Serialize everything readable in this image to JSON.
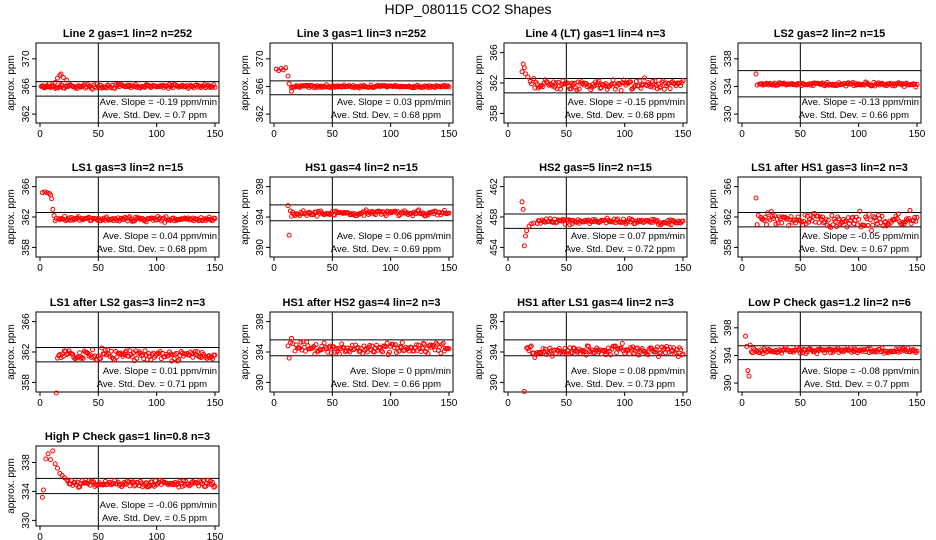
{
  "figure": {
    "title": "HDP_080115  CO2 Shapes",
    "colors": {
      "points": "#ff0000",
      "axes": "#000000",
      "background": "#ffffff"
    }
  },
  "chart_data": [
    {
      "type": "scatter",
      "title": "Line 2 gas=1 lin=2 n=252",
      "ylabel": "approx. ppm",
      "xlim": [
        0,
        150
      ],
      "ylim": [
        361,
        372
      ],
      "yticks": [
        362,
        366,
        370
      ],
      "xticks": [
        0,
        50,
        100,
        150
      ],
      "hlines": [
        366.7,
        364.6
      ],
      "vline": 50,
      "slope_text": "Ave. Slope = -0.19 ppm/min",
      "sd_text": "Ave. Std. Dev. = 0.7 ppm",
      "x_start": 1,
      "x_end": 150,
      "points": [
        [
          2,
          366.1
        ],
        [
          4,
          365.8
        ],
        [
          6,
          366.1
        ],
        [
          8,
          366.4
        ],
        [
          10,
          366.1
        ],
        [
          13,
          366.6
        ],
        [
          15,
          367.2
        ],
        [
          17,
          367.6
        ],
        [
          18,
          367.8
        ],
        [
          20,
          367.3
        ],
        [
          23,
          366.9
        ]
      ],
      "baseline": 366.0,
      "noise": 0.15,
      "step": 1
    },
    {
      "type": "scatter",
      "title": "Line 3 gas=1 lin=3 n=252",
      "ylabel": "approx. ppm",
      "xlim": [
        0,
        150
      ],
      "ylim": [
        361,
        372
      ],
      "yticks": [
        362,
        366,
        370
      ],
      "xticks": [
        0,
        50,
        100,
        150
      ],
      "hlines": [
        366.8,
        364.8
      ],
      "vline": 50,
      "slope_text": "Ave. Slope = 0.03 ppm/min",
      "sd_text": "Ave. Std. Dev. = 0.68 ppm",
      "x_start": 15,
      "x_end": 150,
      "points": [
        [
          2,
          368.5
        ],
        [
          4,
          368.3
        ],
        [
          6,
          368.6
        ],
        [
          8,
          368.4
        ],
        [
          10,
          368.7
        ],
        [
          12,
          367.5
        ],
        [
          13,
          366.4
        ],
        [
          15,
          365.3
        ]
      ],
      "baseline": 366.0,
      "noise": 0.1,
      "step": 1
    },
    {
      "type": "scatter",
      "title": "Line 4 (LT) gas=1 lin=4 n=3",
      "ylabel": "approx. ppm",
      "xlim": [
        0,
        150
      ],
      "ylim": [
        357,
        367
      ],
      "yticks": [
        358,
        362,
        366
      ],
      "xticks": [
        0,
        50,
        100,
        150
      ],
      "hlines": [
        362.6,
        360.7
      ],
      "vline": 50,
      "slope_text": "Ave. Slope = -0.15 ppm/min",
      "sd_text": "Ave. Std. Dev. = 0.68 ppm",
      "x_start": 22,
      "x_end": 150,
      "points": [
        [
          12,
          363.5
        ],
        [
          13,
          364.5
        ],
        [
          14,
          364.0
        ],
        [
          15,
          363.2
        ],
        [
          17,
          362.8
        ],
        [
          19,
          362.2
        ],
        [
          20,
          361.9
        ]
      ],
      "baseline": 361.8,
      "noise": 0.35,
      "step": 1
    },
    {
      "type": "scatter",
      "title": "LS2 gas=2 lin=2 n=15",
      "ylabel": "approx. ppm",
      "xlim": [
        0,
        150
      ],
      "ylim": [
        329,
        340
      ],
      "yticks": [
        330,
        334,
        338
      ],
      "xticks": [
        0,
        50,
        100,
        150
      ],
      "hlines": [
        336.3,
        332.5
      ],
      "vline": 50,
      "slope_text": "Ave. Slope = -0.13 ppm/min",
      "sd_text": "Ave. Std. Dev. = 0.66 ppm",
      "x_start": 15,
      "x_end": 150,
      "points": [
        [
          12,
          335.8
        ],
        [
          13,
          334.2
        ]
      ],
      "baseline": 334.3,
      "noise": 0.15,
      "step": 1
    },
    {
      "type": "scatter",
      "title": "LS1 gas=3 lin=2 n=15",
      "ylabel": "approx. ppm",
      "xlim": [
        0,
        150
      ],
      "ylim": [
        357,
        367
      ],
      "yticks": [
        358,
        362,
        366
      ],
      "xticks": [
        0,
        50,
        100,
        150
      ],
      "hlines": [
        362.6,
        360.7
      ],
      "vline": 50,
      "slope_text": "Ave. Slope = 0.04 ppm/min",
      "sd_text": "Ave. Std. Dev. = 0.68 ppm",
      "x_start": 16,
      "x_end": 150,
      "points": [
        [
          2,
          365.2
        ],
        [
          4,
          365.3
        ],
        [
          6,
          365.2
        ],
        [
          8,
          365.1
        ],
        [
          9,
          364.9
        ],
        [
          10,
          364.4
        ],
        [
          11,
          363.0
        ],
        [
          12,
          362.2
        ],
        [
          13,
          361.5
        ],
        [
          14,
          361.8
        ]
      ],
      "baseline": 361.7,
      "noise": 0.15,
      "step": 1
    },
    {
      "type": "scatter",
      "title": "HS1 gas=4 lin=2 n=15",
      "ylabel": "approx. ppm",
      "xlim": [
        0,
        150
      ],
      "ylim": [
        389,
        399
      ],
      "yticks": [
        390,
        394,
        398
      ],
      "xticks": [
        0,
        50,
        100,
        150
      ],
      "hlines": [
        395.6,
        393.5
      ],
      "vline": 50,
      "slope_text": "Ave. Slope = 0.06 ppm/min",
      "sd_text": "Ave. Std. Dev. = 0.69 ppm",
      "x_start": 16,
      "x_end": 150,
      "points": [
        [
          12,
          395.5
        ],
        [
          13,
          391.6
        ],
        [
          14,
          394.8
        ],
        [
          15,
          394.1
        ]
      ],
      "baseline": 394.5,
      "noise": 0.2,
      "step": 1
    },
    {
      "type": "scatter",
      "title": "HS2 gas=5 lin=2 n=15",
      "ylabel": "approx. ppm",
      "xlim": [
        0,
        150
      ],
      "ylim": [
        453,
        463
      ],
      "yticks": [
        454,
        458,
        462
      ],
      "xticks": [
        0,
        50,
        100,
        150
      ],
      "hlines": [
        458.4,
        456.5
      ],
      "vline": 50,
      "slope_text": "Ave. Slope = 0.07 ppm/min",
      "sd_text": "Ave. Std. Dev. = 0.72 ppm",
      "x_start": 25,
      "x_end": 150,
      "points": [
        [
          12,
          460.0
        ],
        [
          13,
          459.0
        ],
        [
          14,
          454.2
        ],
        [
          15,
          455.5
        ],
        [
          16,
          456.2
        ],
        [
          18,
          456.8
        ],
        [
          20,
          457.1
        ],
        [
          22,
          457.2
        ]
      ],
      "baseline": 457.4,
      "noise": 0.18,
      "step": 1
    },
    {
      "type": "scatter",
      "title": "LS1 after HS1 gas=3 lin=2 n=3",
      "ylabel": "approx. ppm",
      "xlim": [
        0,
        150
      ],
      "ylim": [
        357,
        367
      ],
      "yticks": [
        358,
        362,
        366
      ],
      "xticks": [
        0,
        50,
        100,
        150
      ],
      "hlines": [
        362.6,
        360.7
      ],
      "vline": 50,
      "slope_text": "Ave. Slope = -0.05 ppm/min",
      "sd_text": "Ave. Std. Dev. = 0.67 ppm",
      "x_start": 16,
      "x_end": 150,
      "points": [
        [
          12,
          364.5
        ],
        [
          13,
          361.0
        ],
        [
          14,
          362.2
        ]
      ],
      "baseline": 361.6,
      "noise": 0.5,
      "step": 1
    },
    {
      "type": "scatter",
      "title": "LS1 after LS2 gas=3 lin=2 n=3",
      "ylabel": "approx. ppm",
      "xlim": [
        0,
        150
      ],
      "ylim": [
        357,
        367
      ],
      "yticks": [
        358,
        362,
        366
      ],
      "xticks": [
        0,
        50,
        100,
        150
      ],
      "hlines": [
        362.6,
        360.7
      ],
      "vline": 50,
      "slope_text": "Ave. Slope = 0.01 ppm/min",
      "sd_text": "Ave. Std. Dev. = 0.71 ppm",
      "x_start": 15,
      "x_end": 150,
      "points": [
        [
          14,
          356.6
        ]
      ],
      "baseline": 361.6,
      "noise": 0.35,
      "step": 1
    },
    {
      "type": "scatter",
      "title": "HS1 after HS2 gas=4 lin=2 n=3",
      "ylabel": "approx. ppm",
      "xlim": [
        0,
        150
      ],
      "ylim": [
        389,
        399
      ],
      "yticks": [
        390,
        394,
        398
      ],
      "xticks": [
        0,
        50,
        100,
        150
      ],
      "hlines": [
        395.6,
        393.5
      ],
      "vline": 50,
      "slope_text": "Ave. Slope = 0 ppm/min",
      "sd_text": "Ave. Std. Dev. = 0.66 ppm",
      "x_start": 18,
      "x_end": 150,
      "points": [
        [
          12,
          394.8
        ],
        [
          13,
          393.2
        ],
        [
          14,
          395.2
        ],
        [
          15,
          395.8
        ],
        [
          16,
          395.1
        ]
      ],
      "baseline": 394.5,
      "noise": 0.35,
      "step": 1
    },
    {
      "type": "scatter",
      "title": "HS1 after LS1 gas=4 lin=2 n=3",
      "ylabel": "approx. ppm",
      "xlim": [
        0,
        150
      ],
      "ylim": [
        389,
        399
      ],
      "yticks": [
        390,
        394,
        398
      ],
      "xticks": [
        0,
        50,
        100,
        150
      ],
      "hlines": [
        395.6,
        393.5
      ],
      "vline": 50,
      "slope_text": "Ave. Slope = 0.08 ppm/min",
      "sd_text": "Ave. Std. Dev. = 0.73 ppm",
      "x_start": 16,
      "x_end": 150,
      "points": [
        [
          14,
          388.8
        ]
      ],
      "baseline": 394.2,
      "noise": 0.35,
      "step": 1
    },
    {
      "type": "scatter",
      "title": "Low P Check gas=1.2 lin=2 n=6",
      "ylabel": "approx. ppm",
      "xlim": [
        0,
        150
      ],
      "ylim": [
        389,
        400
      ],
      "yticks": [
        390,
        394,
        398
      ],
      "xticks": [
        0,
        50,
        100,
        150
      ],
      "hlines": [
        395.4,
        393.4
      ],
      "vline": 50,
      "slope_text": "Ave. Slope = -0.08 ppm/min",
      "sd_text": "Ave. Std. Dev. = 0.7 ppm",
      "x_start": 8,
      "x_end": 150,
      "points": [
        [
          3,
          396.8
        ],
        [
          4,
          395.3
        ],
        [
          5,
          391.8
        ],
        [
          6,
          391.0
        ],
        [
          7,
          395.5
        ]
      ],
      "baseline": 394.7,
      "noise": 0.18,
      "step": 1
    },
    {
      "type": "scatter",
      "title": "High P Check gas=1 lin=0.8 n=3",
      "ylabel": "approx. ppm",
      "xlim": [
        0,
        150
      ],
      "ylim": [
        329.5,
        340
      ],
      "yticks": [
        330,
        334,
        338
      ],
      "xticks": [
        0,
        50,
        100,
        150
      ],
      "hlines": [
        335.8,
        333.7
      ],
      "vline": 50,
      "slope_text": "Ave. Slope = -0.06 ppm/min",
      "sd_text": "Ave. Std. Dev. = 0.5 ppm",
      "x_start": 24,
      "x_end": 150,
      "points": [
        [
          2,
          333.2
        ],
        [
          3,
          334.2
        ],
        [
          5,
          338.5
        ],
        [
          7,
          339.2
        ],
        [
          9,
          338.4
        ],
        [
          11,
          339.6
        ],
        [
          13,
          337.8
        ],
        [
          15,
          337.2
        ],
        [
          17,
          336.5
        ],
        [
          19,
          336.2
        ],
        [
          21,
          335.9
        ],
        [
          23,
          335.6
        ]
      ],
      "baseline": 335.1,
      "noise": 0.25,
      "step": 1
    }
  ]
}
